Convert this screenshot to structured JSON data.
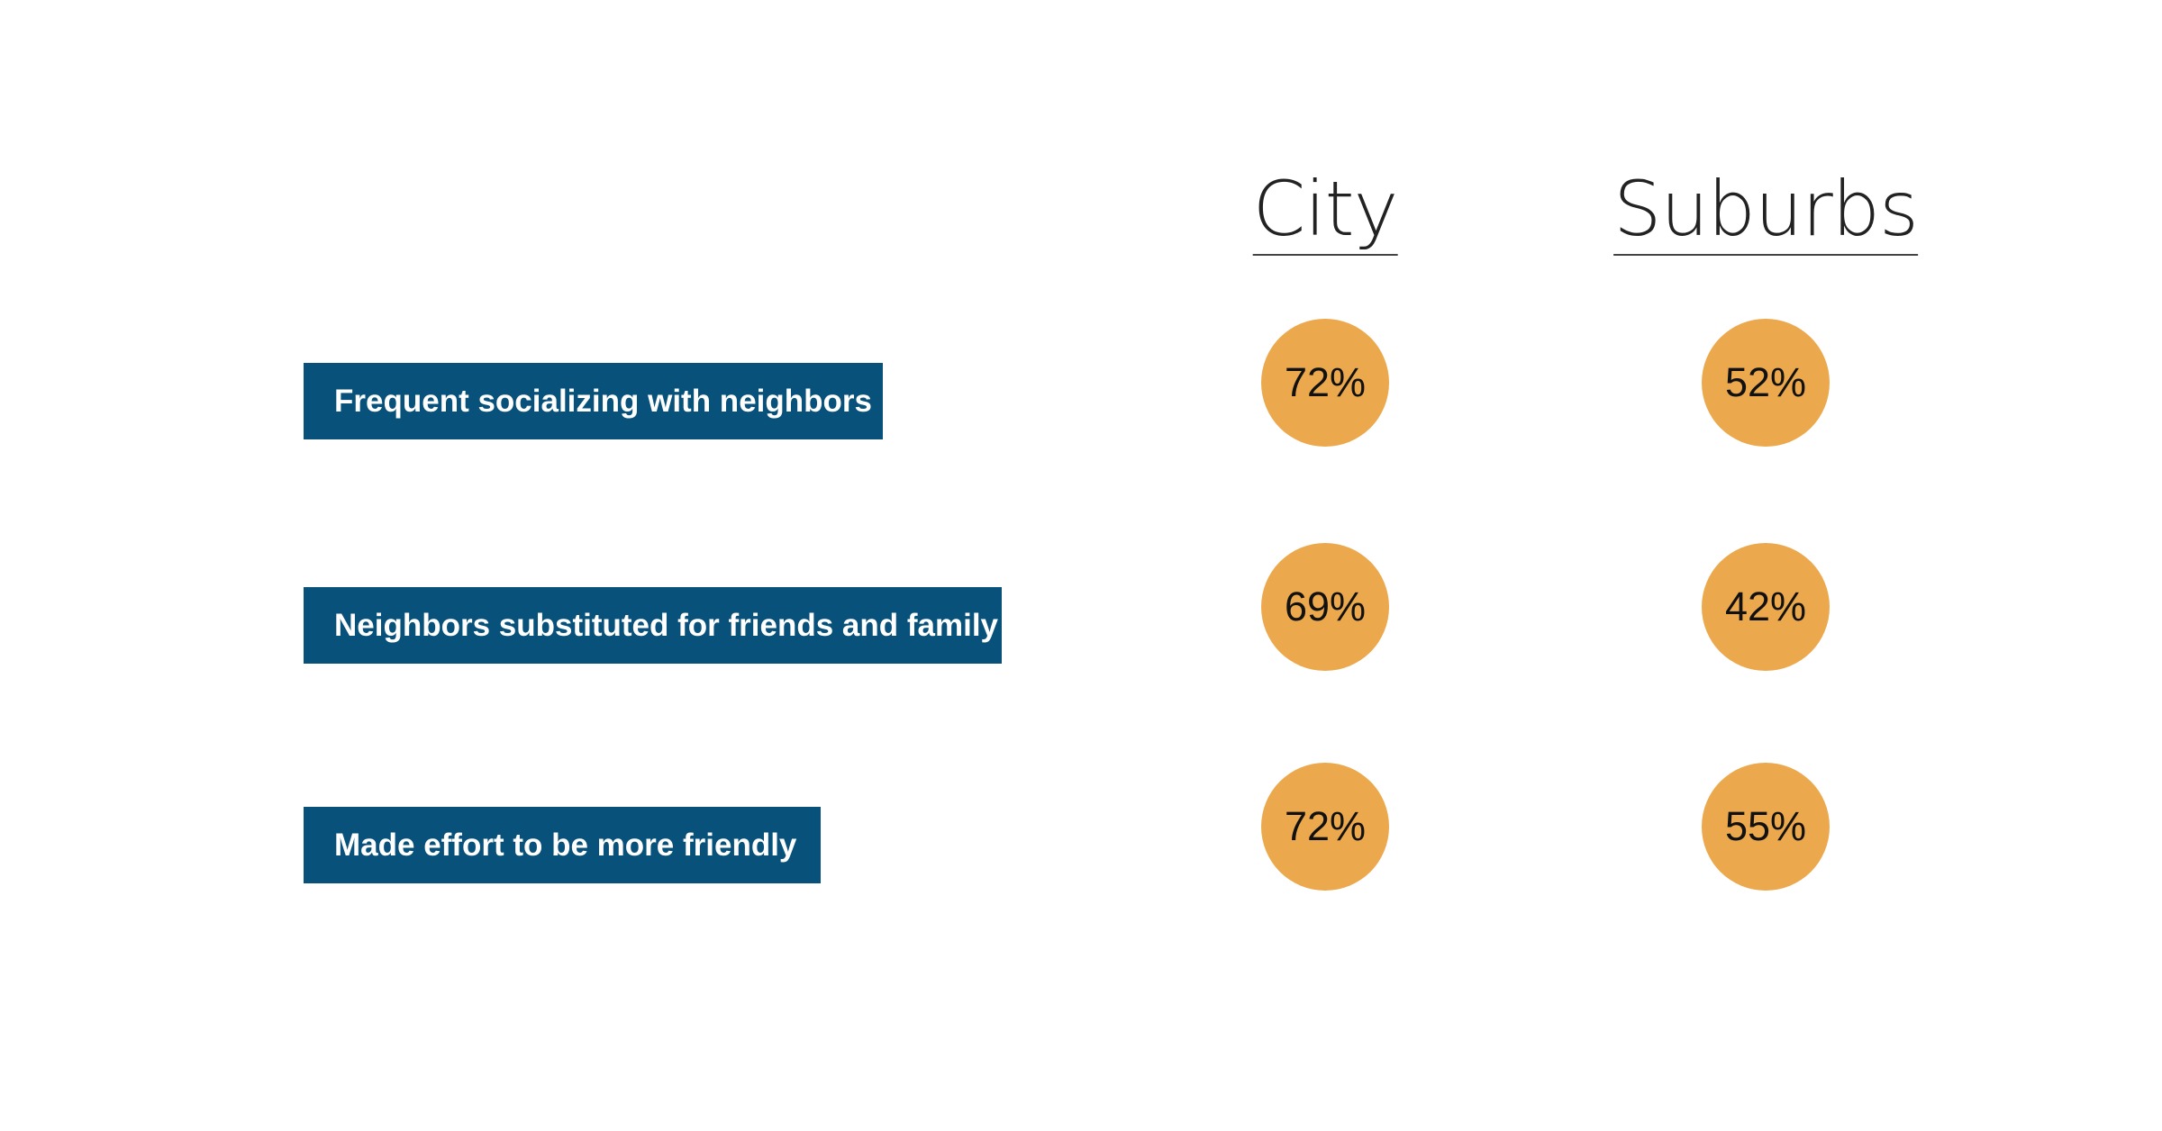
{
  "colors": {
    "label_bg": "#08517A",
    "circle": "#ECA84C",
    "background": "#FFFFFF"
  },
  "chart_data": {
    "type": "table",
    "columns": [
      "City",
      "Suburbs"
    ],
    "rows": [
      {
        "label": "Frequent socializing with neighbors",
        "values": [
          "72%",
          "52%"
        ]
      },
      {
        "label": "Neighbors substituted for friends and family",
        "values": [
          "69%",
          "42%"
        ]
      },
      {
        "label": "Made effort to be more friendly",
        "values": [
          "72%",
          "55%"
        ]
      }
    ]
  }
}
